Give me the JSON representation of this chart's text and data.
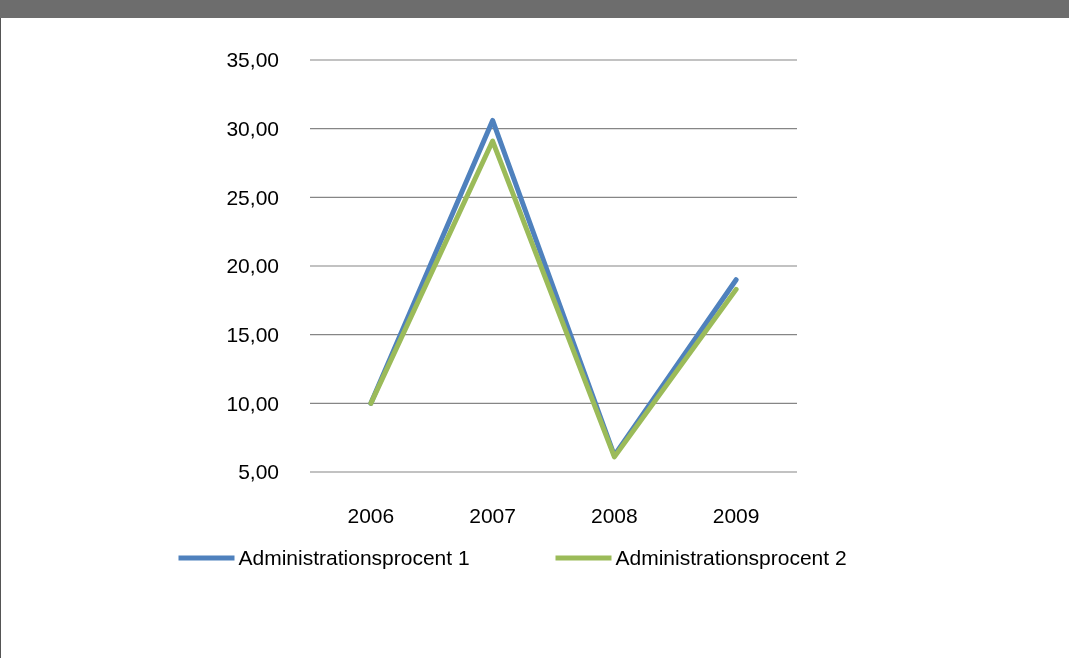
{
  "chart_data": {
    "type": "line",
    "categories": [
      "2006",
      "2007",
      "2008",
      "2009"
    ],
    "series": [
      {
        "name": "Administrationsprocent 1",
        "color": "#4f81bd",
        "values": [
          10.0,
          30.6,
          6.2,
          19.0
        ]
      },
      {
        "name": "Administrationsprocent 2",
        "color": "#9bbb59",
        "values": [
          10.0,
          29.1,
          6.1,
          18.3
        ]
      }
    ],
    "ylim": [
      5,
      35
    ],
    "yticks": [
      {
        "value": 5,
        "label": "5,00"
      },
      {
        "value": 10,
        "label": "10,00"
      },
      {
        "value": 15,
        "label": "15,00"
      },
      {
        "value": 20,
        "label": "20,00"
      },
      {
        "value": 25,
        "label": "25,00"
      },
      {
        "value": 30,
        "label": "30,00"
      },
      {
        "value": 35,
        "label": "35,00"
      }
    ],
    "grid": "y",
    "legend": "bottom",
    "marker": "none",
    "line_style": "solid"
  }
}
